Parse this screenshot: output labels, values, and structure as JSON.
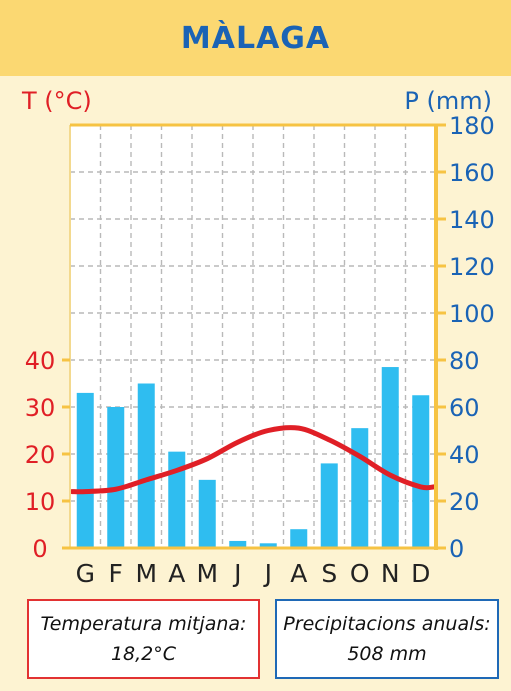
{
  "header": {
    "title": "MÀLAGA"
  },
  "chart_data": {
    "type": "bar+line",
    "categories": [
      "G",
      "F",
      "M",
      "A",
      "M",
      "J",
      "J",
      "A",
      "S",
      "O",
      "N",
      "D"
    ],
    "series": [
      {
        "type": "bar",
        "axis": "right",
        "values": [
          66,
          60,
          70,
          41,
          29,
          3,
          2,
          8,
          36,
          51,
          77,
          65
        ]
      },
      {
        "type": "line",
        "axis": "left",
        "values": [
          12,
          12.5,
          14.5,
          16.5,
          19,
          22.5,
          25,
          25.5,
          23,
          19.5,
          15.5,
          13
        ]
      }
    ],
    "left_axis": {
      "label": "T (°C)",
      "ticks": [
        0,
        10,
        20,
        30,
        40
      ],
      "range": [
        0,
        90
      ]
    },
    "right_axis": {
      "label": "P (mm)",
      "ticks": [
        0,
        20,
        40,
        60,
        80,
        100,
        120,
        140,
        160,
        180
      ],
      "range": [
        0,
        180
      ]
    },
    "grid": true,
    "colors": {
      "bars": "#2fbdf0",
      "line": "#e01f26",
      "left_axis": "#e01f26",
      "right_axis": "#1a63b5",
      "frame": "#f6c343"
    }
  },
  "summary": {
    "temperature_label": "Temperatura mitjana:",
    "temperature_value": "18,2°C",
    "precipitation_label": "Precipitacions anuals:",
    "precipitation_value": "508 mm"
  }
}
